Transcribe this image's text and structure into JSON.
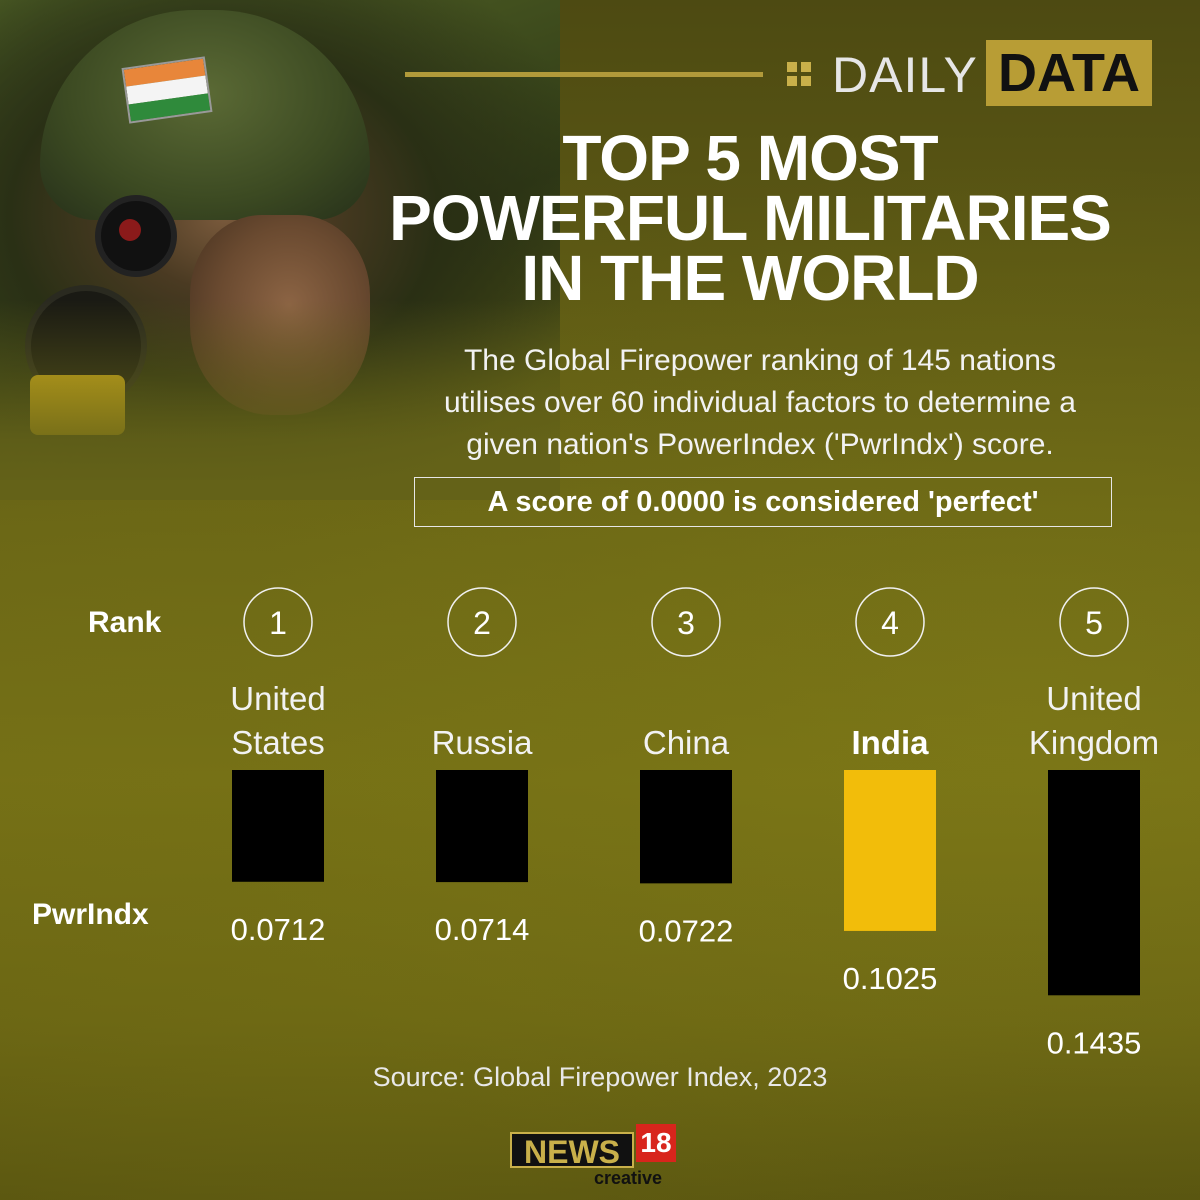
{
  "brand": {
    "daily": "DAILY",
    "data": "DATA"
  },
  "title_lines": [
    "TOP 5 MOST",
    "POWERFUL MILITARIES",
    "IN THE WORLD"
  ],
  "description_lines": [
    "The Global Firepower ranking of 145 nations",
    "utilises over 60 individual factors to determine a",
    "given nation's PowerIndex ('PwrIndx') score."
  ],
  "callout": "A score of 0.0000 is considered 'perfect'",
  "row_labels": {
    "rank": "Rank",
    "index": "PwrIndx"
  },
  "source": "Source: Global Firepower Index, 2023",
  "logo": {
    "news": "NEWS",
    "number": "18",
    "sub": "creative"
  },
  "colors": {
    "bar_default": "#000000",
    "bar_highlight": "#f2bd0a",
    "brand_gold": "#b89d35"
  },
  "chart_data": {
    "type": "bar",
    "categories": [
      "United States",
      "Russia",
      "China",
      "India",
      "United Kingdom"
    ],
    "category_lines": [
      [
        "United",
        "States"
      ],
      [
        "Russia"
      ],
      [
        "China"
      ],
      [
        "India"
      ],
      [
        "United",
        "Kingdom"
      ]
    ],
    "ranks": [
      "1",
      "2",
      "3",
      "4",
      "5"
    ],
    "values": [
      0.0712,
      0.0714,
      0.0722,
      0.1025,
      0.1435
    ],
    "value_labels": [
      "0.0712",
      "0.0714",
      "0.0722",
      "0.1025",
      "0.1435"
    ],
    "highlight": "India",
    "xlabel": "",
    "ylabel": "",
    "grid": false,
    "legend": "none"
  }
}
